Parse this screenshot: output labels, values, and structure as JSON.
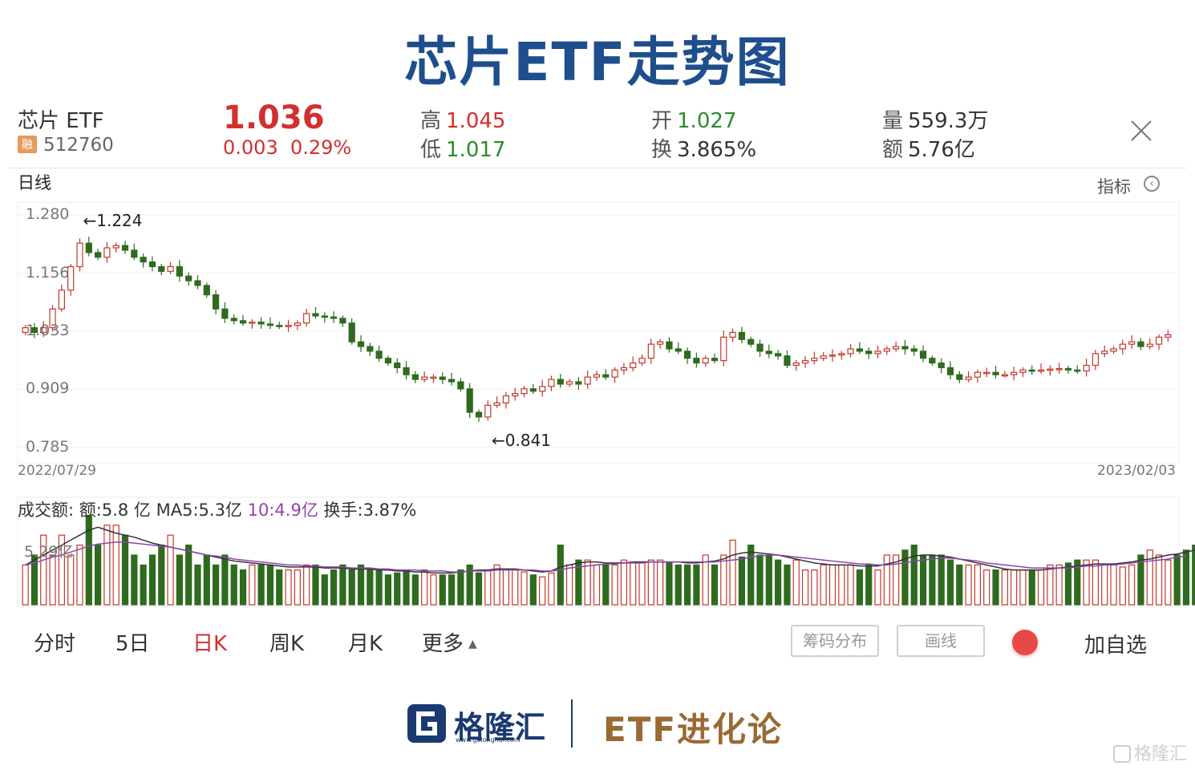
{
  "title": "芯片ETF走势图",
  "quote": {
    "name": "芯片 ETF",
    "badge": "融",
    "code": "512760",
    "price": "1.036",
    "change": "0.003",
    "change_pct": "0.29%",
    "high_label": "高",
    "high": "1.045",
    "low_label": "低",
    "low": "1.017",
    "open_label": "开",
    "open": "1.027",
    "turnover_label": "换",
    "turnover": "3.865%",
    "volume_label": "量",
    "volume": "559.3万",
    "amount_label": "额",
    "amount": "5.76亿"
  },
  "period_label": "日线",
  "indicator_label": "指标",
  "chart_data": {
    "type": "candlestick",
    "y_ticks": [
      "1.280",
      "1.156",
      "1.033",
      "0.909",
      "0.785"
    ],
    "y_tick_values": [
      1.28,
      1.156,
      1.033,
      0.909,
      0.785
    ],
    "ylim": [
      0.785,
      1.28
    ],
    "x_start": "2022/07/29",
    "x_end": "2023/02/03",
    "max_label": "←1.224",
    "max_value": 1.224,
    "min_label": "←0.841",
    "min_value": 0.841,
    "closes": [
      1.04,
      1.03,
      1.04,
      1.08,
      1.12,
      1.17,
      1.22,
      1.2,
      1.19,
      1.21,
      1.215,
      1.205,
      1.19,
      1.18,
      1.17,
      1.16,
      1.17,
      1.15,
      1.14,
      1.13,
      1.11,
      1.08,
      1.06,
      1.055,
      1.05,
      1.052,
      1.048,
      1.045,
      1.043,
      1.045,
      1.05,
      1.07,
      1.065,
      1.063,
      1.06,
      1.05,
      1.01,
      1.0,
      0.99,
      0.975,
      0.965,
      0.955,
      0.94,
      0.93,
      0.935,
      0.935,
      0.93,
      0.925,
      0.91,
      0.86,
      0.85,
      0.875,
      0.88,
      0.895,
      0.9,
      0.91,
      0.905,
      0.915,
      0.93,
      0.92,
      0.925,
      0.92,
      0.935,
      0.94,
      0.935,
      0.95,
      0.955,
      0.965,
      0.975,
      1.005,
      1.01,
      0.995,
      0.99,
      0.975,
      0.965,
      0.975,
      0.97,
      1.02,
      1.03,
      1.015,
      1.005,
      0.99,
      0.985,
      0.98,
      0.96,
      0.965,
      0.97,
      0.975,
      0.98,
      0.982,
      0.985,
      0.995,
      0.99,
      0.985,
      0.99,
      0.995,
      1.0,
      0.995,
      0.99,
      0.975,
      0.965,
      0.955,
      0.94,
      0.93,
      0.935,
      0.945,
      0.945,
      0.94,
      0.94,
      0.945,
      0.95,
      0.948,
      0.95,
      0.952,
      0.953,
      0.95,
      0.948,
      0.96,
      0.985,
      0.99,
      0.995,
      1.005,
      1.01,
      1.0,
      1.005,
      1.02,
      1.025
    ],
    "volume_text": {
      "label": "成交额:",
      "amount": "额:5.8 亿",
      "ma5": "MA5:5.3亿",
      "ma10": "10:4.9亿",
      "turnover": "换手:3.87%",
      "axis_tick": "5.29亿"
    },
    "volume_max": 10,
    "volumes": [
      4,
      5,
      7,
      5,
      7,
      5,
      6,
      9,
      6,
      8,
      8,
      7,
      5,
      4,
      5,
      6,
      7,
      5,
      6,
      4,
      5,
      4,
      5,
      4,
      3.5,
      4,
      4,
      4,
      3.5,
      3.5,
      3.5,
      4,
      4,
      3,
      3.5,
      4,
      3.5,
      4,
      3.5,
      3.5,
      3,
      3.2,
      3.5,
      3,
      3.5,
      3,
      3,
      3,
      3.5,
      4,
      3.2,
      3.5,
      4,
      3.5,
      3.5,
      3.3,
      3,
      2.8,
      3.2,
      6,
      4,
      4.5,
      4.5,
      4,
      4,
      4,
      4.5,
      4.2,
      4.2,
      4.5,
      4.5,
      4.2,
      4,
      4,
      4,
      5,
      4,
      5,
      6.5,
      4.8,
      6,
      5,
      5,
      4.5,
      4,
      4.5,
      3.5,
      3.5,
      4,
      4,
      4,
      4,
      3.5,
      4,
      3.5,
      5,
      5,
      5.5,
      6,
      5,
      5,
      5,
      4.5,
      4,
      4,
      4,
      3.5,
      3.5,
      3.5,
      3.5,
      3.5,
      3.5,
      3.5,
      4,
      4,
      4.2,
      4.5,
      4.5,
      4.5,
      4,
      4,
      3.8,
      4,
      5,
      5.5,
      5,
      4.5,
      5,
      5.5,
      6,
      6
    ],
    "ma5": [
      4,
      4.5,
      5,
      5.5,
      6,
      6.5,
      7,
      7.5,
      7.8,
      7.5,
      7.2,
      7,
      6.8,
      6.5,
      6.2,
      6,
      5.8,
      5.6,
      5.4,
      5.2,
      5,
      4.8,
      4.6,
      4.4,
      4.3,
      4.2,
      4.1,
      4,
      3.9,
      3.8,
      3.8,
      3.8,
      3.8,
      3.7,
      3.7,
      3.7,
      3.6,
      3.6,
      3.6,
      3.5,
      3.5,
      3.4,
      3.4,
      3.3,
      3.3,
      3.2,
      3.2,
      3.2,
      3.3,
      3.4,
      3.5,
      3.5,
      3.6,
      3.6,
      3.6,
      3.5,
      3.4,
      3.3,
      3.4,
      3.8,
      4,
      4.2,
      4.3,
      4.3,
      4.2,
      4.2,
      4.2,
      4.3,
      4.3,
      4.3,
      4.3,
      4.3,
      4.3,
      4.2,
      4.2,
      4.3,
      4.4,
      4.6,
      5,
      5.2,
      5.3,
      5.2,
      5.1,
      5,
      4.8,
      4.6,
      4.4,
      4.2,
      4.1,
      4,
      4,
      4,
      3.9,
      3.9,
      3.9,
      4.1,
      4.3,
      4.6,
      4.9,
      5,
      5,
      4.9,
      4.8,
      4.6,
      4.4,
      4.2,
      4,
      3.8,
      3.6,
      3.5,
      3.5,
      3.5,
      3.5,
      3.6,
      3.7,
      3.8,
      3.9,
      4,
      4.1,
      4.1,
      4.1,
      4.2,
      4.3,
      4.5,
      4.6,
      4.8,
      5,
      5.1,
      5.3,
      5.5
    ],
    "ma10": [
      4,
      4.2,
      4.5,
      4.8,
      5,
      5.3,
      5.6,
      5.9,
      6.1,
      6.2,
      6.3,
      6.3,
      6.2,
      6.1,
      6,
      5.9,
      5.8,
      5.6,
      5.4,
      5.2,
      5,
      4.9,
      4.8,
      4.6,
      4.5,
      4.4,
      4.3,
      4.2,
      4.1,
      4,
      4,
      3.9,
      3.9,
      3.8,
      3.8,
      3.8,
      3.7,
      3.7,
      3.7,
      3.6,
      3.6,
      3.5,
      3.5,
      3.5,
      3.4,
      3.4,
      3.4,
      3.3,
      3.3,
      3.4,
      3.4,
      3.4,
      3.5,
      3.5,
      3.5,
      3.5,
      3.5,
      3.4,
      3.4,
      3.5,
      3.7,
      3.8,
      3.9,
      4,
      4.1,
      4.1,
      4.2,
      4.2,
      4.2,
      4.3,
      4.3,
      4.3,
      4.3,
      4.3,
      4.3,
      4.3,
      4.3,
      4.4,
      4.5,
      4.6,
      4.8,
      4.9,
      5,
      5,
      4.9,
      4.8,
      4.7,
      4.6,
      4.5,
      4.4,
      4.3,
      4.2,
      4.1,
      4.1,
      4,
      4,
      4.1,
      4.2,
      4.4,
      4.5,
      4.6,
      4.7,
      4.7,
      4.6,
      4.5,
      4.4,
      4.2,
      4.1,
      4,
      3.9,
      3.8,
      3.7,
      3.7,
      3.7,
      3.7,
      3.7,
      3.8,
      3.9,
      3.9,
      4,
      4,
      4.1,
      4.2,
      4.3,
      4.4,
      4.5,
      4.6,
      4.8,
      4.9
    ],
    "up_color": "#c0392b",
    "down_color": "#2e6b1e",
    "ma5_color": "#333333",
    "ma10_color": "#8e44ad"
  },
  "tabs": [
    "分时",
    "5日",
    "日K",
    "周K",
    "月K",
    "更多"
  ],
  "active_tab": "日K",
  "buttons": {
    "chips": "筹码分布",
    "draw": "画线",
    "add": "加自选"
  },
  "footer": {
    "brand": "格隆汇",
    "url": "www.gelonghui.com",
    "slogan": "ETF进化论"
  },
  "watermark": "格隆汇"
}
